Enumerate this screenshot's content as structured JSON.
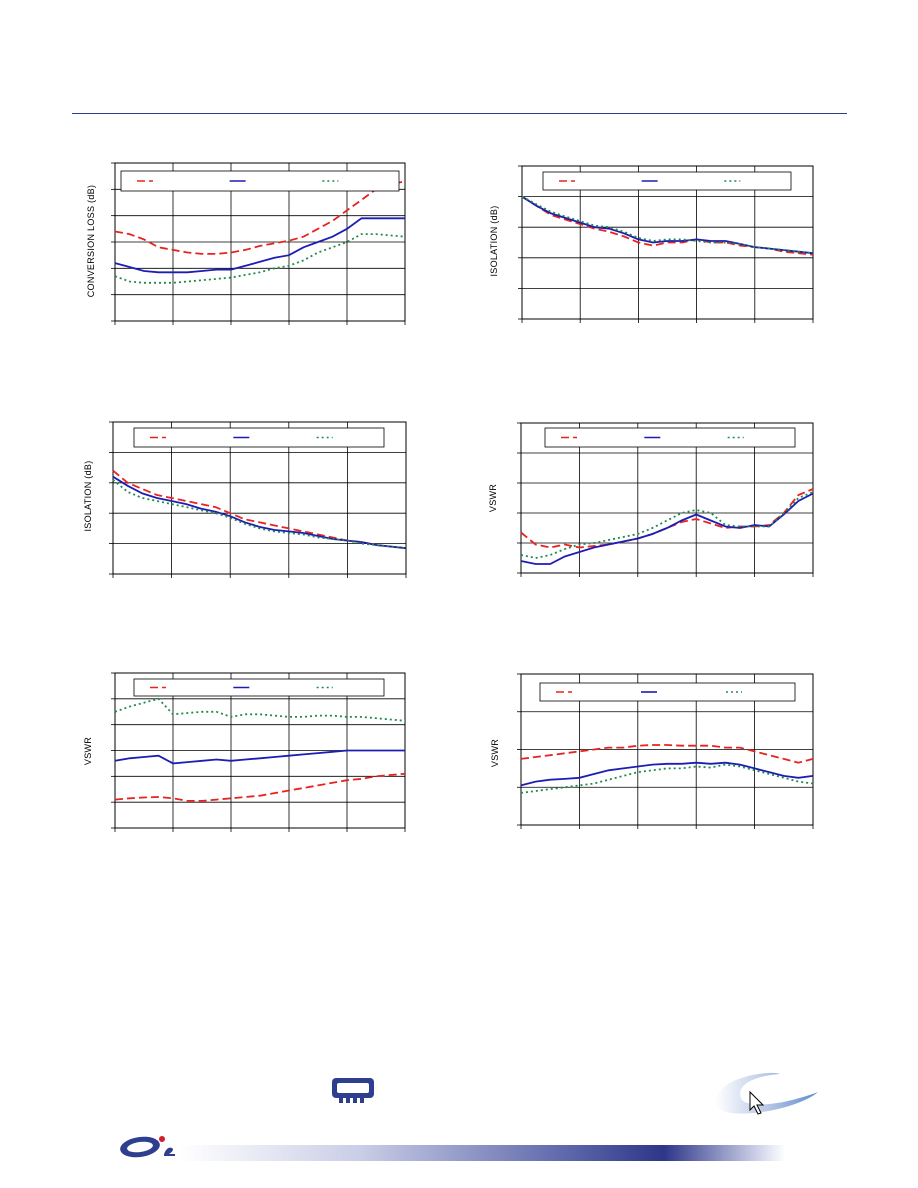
{
  "charts": [
    {
      "key": "c1",
      "ylabel": "CONVERSION LOSS (dB)"
    },
    {
      "key": "c2",
      "ylabel": "ISOLATION (dB)"
    },
    {
      "key": "c3",
      "ylabel": "ISOLATION (dB)"
    },
    {
      "key": "c4",
      "ylabel": "VSWR"
    },
    {
      "key": "c5",
      "ylabel": "VSWR"
    },
    {
      "key": "c6",
      "ylabel": "VSWR"
    }
  ],
  "colors": {
    "red": "#e8231f",
    "blue": "#1d1db5",
    "green": "#1f8a4c",
    "rule": "#2e3f8f"
  },
  "chart_data": [
    {
      "type": "line",
      "ylabel": "CONVERSION LOSS (dB)",
      "grid": true,
      "legend_position": "top",
      "x": [
        0,
        0.25,
        0.5,
        0.75,
        1,
        1.25,
        1.5,
        1.75,
        2,
        2.25,
        2.5,
        2.75,
        3,
        3.25,
        3.5,
        3.75,
        4,
        4.25,
        4.5,
        4.75,
        5
      ],
      "xlim": [
        0,
        5
      ],
      "ylim": [
        0,
        6
      ],
      "series": [
        {
          "color": "red",
          "style": "dash",
          "values": [
            3.4,
            3.3,
            3.1,
            2.8,
            2.7,
            2.6,
            2.55,
            2.55,
            2.6,
            2.7,
            2.85,
            2.95,
            3.05,
            3.2,
            3.5,
            3.8,
            4.2,
            4.6,
            5.0,
            5.2,
            5.3
          ]
        },
        {
          "color": "blue",
          "style": "solid",
          "values": [
            2.2,
            2.05,
            1.9,
            1.85,
            1.85,
            1.85,
            1.9,
            1.95,
            1.95,
            2.1,
            2.25,
            2.4,
            2.5,
            2.8,
            3.0,
            3.2,
            3.5,
            3.9,
            3.9,
            3.9,
            3.9
          ]
        },
        {
          "color": "green",
          "style": "dot",
          "values": [
            1.7,
            1.5,
            1.45,
            1.45,
            1.45,
            1.5,
            1.55,
            1.6,
            1.65,
            1.75,
            1.85,
            2.0,
            2.1,
            2.3,
            2.6,
            2.8,
            3.0,
            3.3,
            3.3,
            3.25,
            3.2
          ]
        }
      ]
    },
    {
      "type": "line",
      "ylabel": "ISOLATION (dB)",
      "grid": true,
      "legend_position": "top",
      "x": [
        0,
        0.25,
        0.5,
        0.75,
        1,
        1.25,
        1.5,
        1.75,
        2,
        2.25,
        2.5,
        2.75,
        3,
        3.25,
        3.5,
        3.75,
        4,
        4.25,
        4.5,
        4.75,
        5
      ],
      "xlim": [
        0,
        5
      ],
      "ylim": [
        0,
        5
      ],
      "series": [
        {
          "color": "red",
          "style": "dash",
          "values": [
            4.0,
            3.7,
            3.4,
            3.25,
            3.1,
            2.95,
            2.85,
            2.7,
            2.5,
            2.4,
            2.5,
            2.5,
            2.6,
            2.5,
            2.5,
            2.4,
            2.35,
            2.3,
            2.2,
            2.15,
            2.1
          ]
        },
        {
          "color": "blue",
          "style": "solid",
          "values": [
            4.0,
            3.7,
            3.45,
            3.3,
            3.15,
            3.0,
            2.95,
            2.8,
            2.6,
            2.5,
            2.55,
            2.55,
            2.6,
            2.55,
            2.55,
            2.45,
            2.35,
            2.3,
            2.25,
            2.2,
            2.15
          ]
        },
        {
          "color": "green",
          "style": "dot",
          "values": [
            4.0,
            3.75,
            3.5,
            3.35,
            3.2,
            3.05,
            3.0,
            2.85,
            2.65,
            2.55,
            2.6,
            2.6,
            2.55,
            2.5,
            2.5,
            2.45,
            2.35,
            2.3,
            2.25,
            2.2,
            2.15
          ]
        }
      ]
    },
    {
      "type": "line",
      "ylabel": "ISOLATION (dB)",
      "grid": true,
      "legend_position": "top",
      "x": [
        0,
        0.25,
        0.5,
        0.75,
        1,
        1.25,
        1.5,
        1.75,
        2,
        2.25,
        2.5,
        2.75,
        3,
        3.25,
        3.5,
        3.75,
        4,
        4.25,
        4.5,
        4.75,
        5
      ],
      "xlim": [
        0,
        5
      ],
      "ylim": [
        0,
        5
      ],
      "series": [
        {
          "color": "red",
          "style": "dash",
          "values": [
            3.4,
            3.0,
            2.8,
            2.6,
            2.5,
            2.4,
            2.3,
            2.2,
            2.0,
            1.8,
            1.7,
            1.6,
            1.5,
            1.4,
            1.3,
            1.2,
            1.1,
            1.05,
            0.95,
            0.9,
            0.85
          ]
        },
        {
          "color": "blue",
          "style": "solid",
          "values": [
            3.2,
            2.9,
            2.65,
            2.5,
            2.4,
            2.3,
            2.15,
            2.05,
            1.9,
            1.7,
            1.55,
            1.45,
            1.4,
            1.35,
            1.25,
            1.15,
            1.1,
            1.05,
            0.95,
            0.9,
            0.85
          ]
        },
        {
          "color": "green",
          "style": "dot",
          "values": [
            3.1,
            2.7,
            2.5,
            2.4,
            2.3,
            2.2,
            2.1,
            2.0,
            1.85,
            1.65,
            1.5,
            1.4,
            1.35,
            1.3,
            1.2,
            1.15,
            1.1,
            1.0,
            0.95,
            0.9,
            0.85
          ]
        }
      ]
    },
    {
      "type": "line",
      "ylabel": "VSWR",
      "grid": true,
      "legend_position": "top",
      "x": [
        0,
        0.25,
        0.5,
        0.75,
        1,
        1.25,
        1.5,
        1.75,
        2,
        2.25,
        2.5,
        2.75,
        3,
        3.25,
        3.5,
        3.75,
        4,
        4.25,
        4.5,
        4.75,
        5
      ],
      "xlim": [
        0,
        5
      ],
      "ylim": [
        0,
        5
      ],
      "series": [
        {
          "color": "red",
          "style": "dash",
          "values": [
            1.35,
            0.95,
            0.85,
            0.95,
            0.85,
            0.9,
            0.95,
            1.05,
            1.15,
            1.3,
            1.5,
            1.7,
            1.8,
            1.65,
            1.5,
            1.55,
            1.55,
            1.6,
            2.0,
            2.6,
            2.8
          ]
        },
        {
          "color": "blue",
          "style": "solid",
          "values": [
            0.4,
            0.3,
            0.3,
            0.55,
            0.7,
            0.85,
            0.95,
            1.05,
            1.15,
            1.3,
            1.5,
            1.75,
            1.95,
            1.75,
            1.55,
            1.5,
            1.6,
            1.55,
            1.95,
            2.4,
            2.65
          ]
        },
        {
          "color": "green",
          "style": "dot",
          "values": [
            0.6,
            0.5,
            0.6,
            0.8,
            0.95,
            1.0,
            1.1,
            1.2,
            1.3,
            1.5,
            1.75,
            2.0,
            2.1,
            2.0,
            1.6,
            1.55,
            1.55,
            1.55,
            2.0,
            2.5,
            2.7
          ]
        }
      ]
    },
    {
      "type": "line",
      "ylabel": "VSWR",
      "grid": true,
      "legend_position": "top",
      "x": [
        0,
        0.25,
        0.5,
        0.75,
        1,
        1.25,
        1.5,
        1.75,
        2,
        2.25,
        2.5,
        2.75,
        3,
        3.25,
        3.5,
        3.75,
        4,
        4.25,
        4.5,
        4.75,
        5
      ],
      "xlim": [
        0,
        5
      ],
      "ylim": [
        0,
        6
      ],
      "series": [
        {
          "color": "red",
          "style": "dash",
          "values": [
            1.1,
            1.15,
            1.18,
            1.2,
            1.15,
            1.05,
            1.05,
            1.1,
            1.15,
            1.2,
            1.25,
            1.35,
            1.45,
            1.55,
            1.65,
            1.75,
            1.85,
            1.9,
            2.0,
            2.05,
            2.1
          ]
        },
        {
          "color": "blue",
          "style": "solid",
          "values": [
            2.6,
            2.7,
            2.75,
            2.8,
            2.5,
            2.55,
            2.6,
            2.65,
            2.6,
            2.65,
            2.7,
            2.75,
            2.8,
            2.85,
            2.9,
            2.95,
            3.0,
            3.0,
            3.0,
            3.0,
            3.0
          ]
        },
        {
          "color": "green",
          "style": "dot",
          "values": [
            4.5,
            4.7,
            4.85,
            5.0,
            4.4,
            4.45,
            4.5,
            4.5,
            4.3,
            4.4,
            4.4,
            4.35,
            4.3,
            4.3,
            4.35,
            4.35,
            4.3,
            4.3,
            4.25,
            4.2,
            4.15
          ]
        }
      ]
    },
    {
      "type": "line",
      "ylabel": "VSWR",
      "grid": true,
      "legend_position": "top",
      "x": [
        0,
        0.25,
        0.5,
        0.75,
        1,
        1.25,
        1.5,
        1.75,
        2,
        2.25,
        2.5,
        2.75,
        3,
        3.25,
        3.5,
        3.75,
        4,
        4.25,
        4.5,
        4.75,
        5
      ],
      "xlim": [
        0,
        5
      ],
      "ylim": [
        0,
        4
      ],
      "series": [
        {
          "color": "red",
          "style": "dash",
          "values": [
            1.75,
            1.8,
            1.85,
            1.9,
            1.95,
            2.0,
            2.05,
            2.05,
            2.1,
            2.12,
            2.12,
            2.1,
            2.1,
            2.1,
            2.05,
            2.05,
            1.95,
            1.85,
            1.75,
            1.65,
            1.75
          ]
        },
        {
          "color": "blue",
          "style": "solid",
          "values": [
            1.05,
            1.15,
            1.2,
            1.22,
            1.25,
            1.35,
            1.45,
            1.5,
            1.55,
            1.6,
            1.62,
            1.62,
            1.65,
            1.62,
            1.65,
            1.6,
            1.5,
            1.4,
            1.3,
            1.25,
            1.3
          ]
        },
        {
          "color": "green",
          "style": "dot",
          "values": [
            0.85,
            0.9,
            0.95,
            1.0,
            1.05,
            1.1,
            1.2,
            1.3,
            1.4,
            1.45,
            1.5,
            1.5,
            1.55,
            1.52,
            1.6,
            1.55,
            1.45,
            1.35,
            1.25,
            1.15,
            1.1
          ]
        }
      ]
    }
  ]
}
